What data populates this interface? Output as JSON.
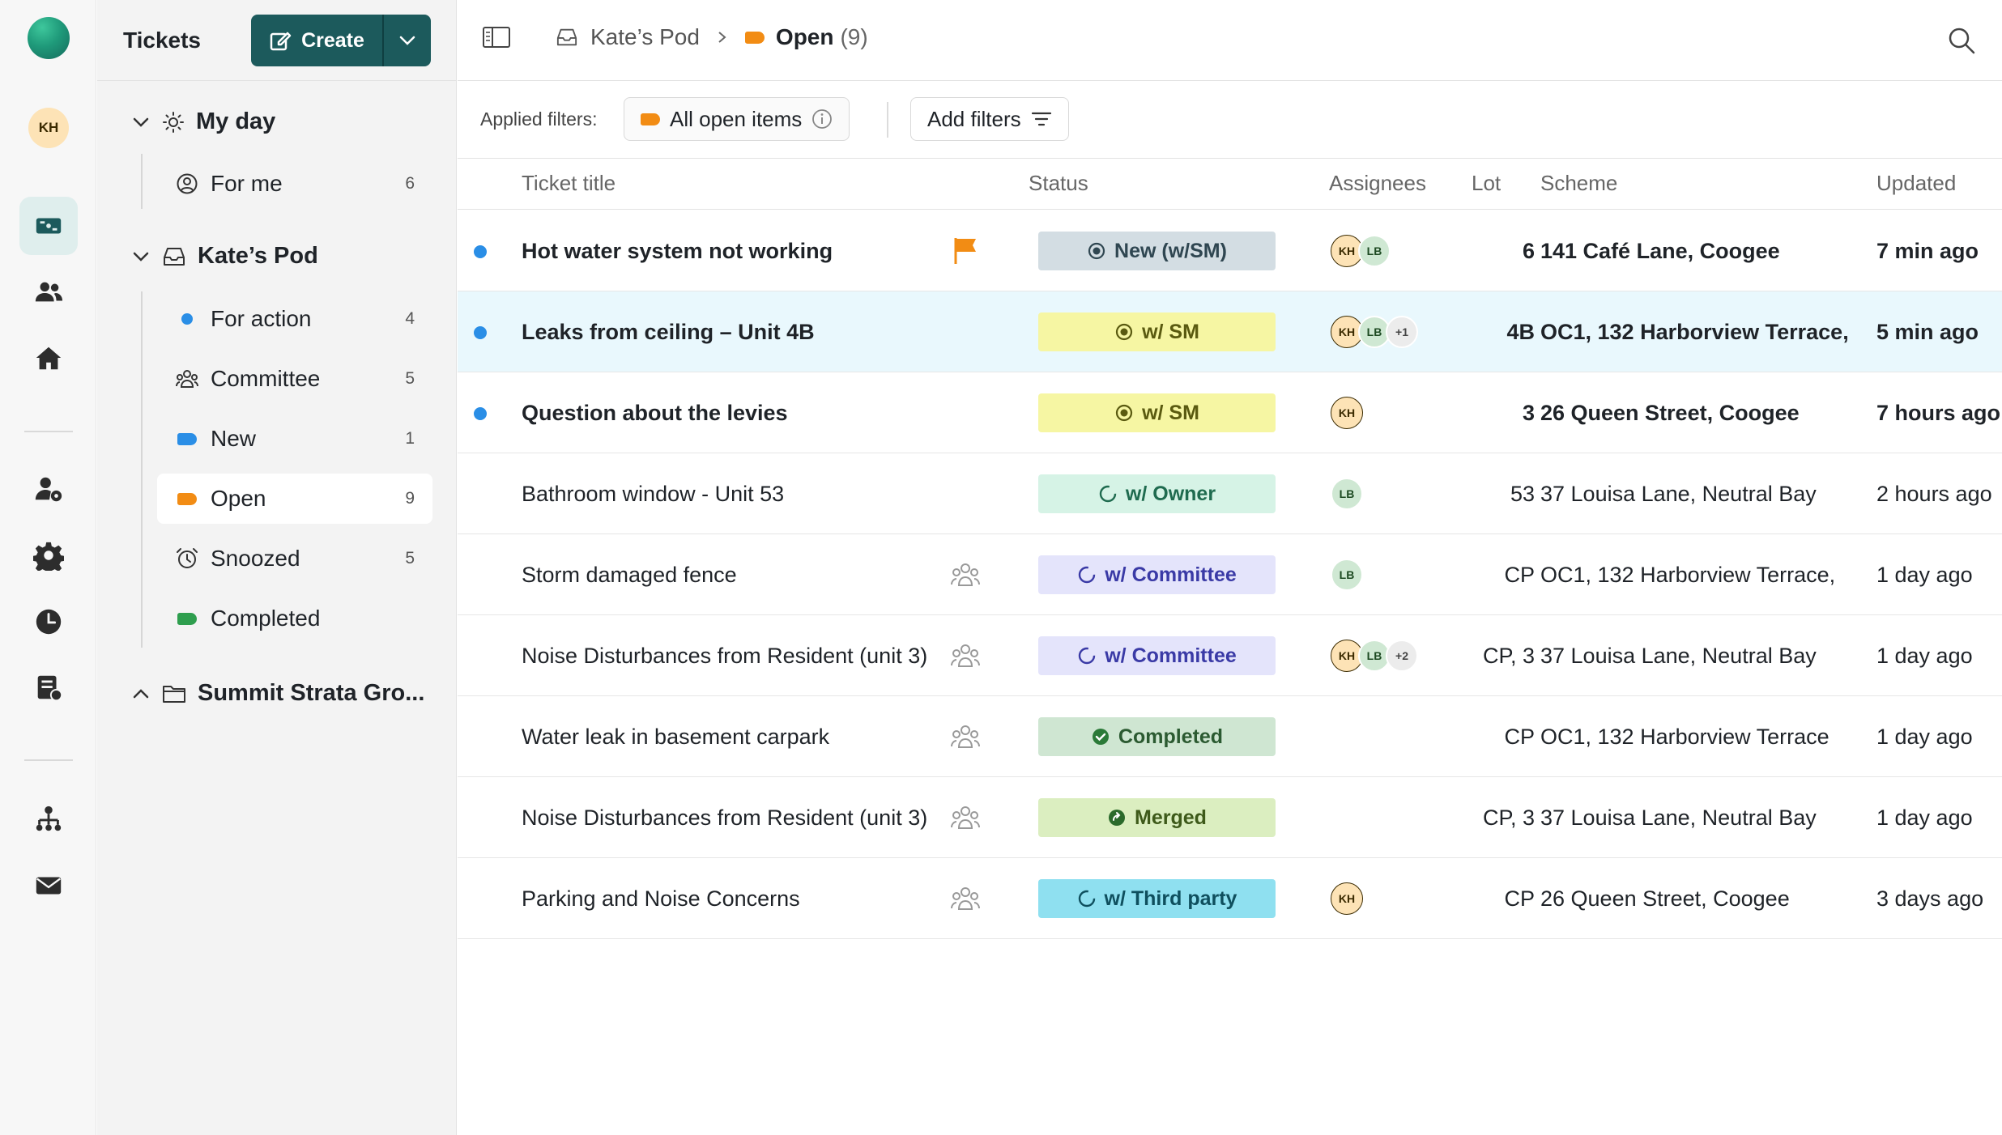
{
  "rail": {
    "user_initials": "KH"
  },
  "sidebar": {
    "title": "Tickets",
    "create_label": "Create",
    "groups": [
      {
        "label": "My day"
      },
      {
        "label": "Kate’s Pod"
      },
      {
        "label": "Summit Strata Gro..."
      }
    ],
    "items": [
      {
        "label": "For me",
        "count": "6"
      },
      {
        "label": "For action",
        "count": "4"
      },
      {
        "label": "Committee",
        "count": "5"
      },
      {
        "label": "New",
        "count": "1"
      },
      {
        "label": "Open",
        "count": "9"
      },
      {
        "label": "Snoozed",
        "count": "5"
      },
      {
        "label": "Completed",
        "count": ""
      }
    ]
  },
  "topbar": {
    "crumb_parent": "Kate’s Pod",
    "crumb_current": "Open",
    "crumb_count": "(9)"
  },
  "filters": {
    "label": "Applied filters:",
    "applied": "All open items",
    "add_label": "Add filters"
  },
  "table": {
    "headers": {
      "title": "Ticket title",
      "status": "Status",
      "assignees": "Assignees",
      "lot": "Lot",
      "scheme": "Scheme",
      "updated": "Updated"
    },
    "rows": [
      {
        "title": "Hot water system not working",
        "status": "New (w/SM)",
        "lot": "6",
        "scheme": "141 Café Lane, Coogee",
        "updated": "7 min ago",
        "av1": "KH",
        "av2": "LB"
      },
      {
        "title": "Leaks from ceiling – Unit 4B",
        "status": "w/ SM",
        "lot": "4B",
        "scheme": "OC1, 132 Harborview Terrace,",
        "updated": "5 min ago",
        "av1": "KH",
        "av2": "LB",
        "av_more": "+1"
      },
      {
        "title": "Question about the levies",
        "status": "w/ SM",
        "lot": "3",
        "scheme": "26 Queen Street, Coogee",
        "updated": "7 hours ago",
        "av1": "KH"
      },
      {
        "title": "Bathroom window - Unit 53",
        "status": "w/ Owner",
        "lot": "53",
        "scheme": "37 Louisa Lane, Neutral Bay",
        "updated": "2 hours ago",
        "av1": "LB"
      },
      {
        "title": "Storm damaged fence",
        "status": "w/ Committee",
        "lot": "CP",
        "scheme": "OC1, 132 Harborview Terrace,",
        "updated": "1 day ago",
        "av1": "LB"
      },
      {
        "title": "Noise Disturbances from Resident (unit 3)",
        "status": "w/ Committee",
        "lot": "CP, 3",
        "scheme": "37 Louisa Lane, Neutral Bay",
        "updated": "1 day ago",
        "av1": "KH",
        "av2": "LB",
        "av_more": "+2"
      },
      {
        "title": "Water leak in basement carpark",
        "status": "Completed",
        "lot": "CP",
        "scheme": "OC1, 132 Harborview Terrace",
        "updated": "1 day ago"
      },
      {
        "title": "Noise Disturbances from Resident (unit 3)",
        "status": "Merged",
        "lot": "CP, 3",
        "scheme": "37 Louisa Lane, Neutral Bay",
        "updated": "1 day ago"
      },
      {
        "title": "Parking and Noise Concerns",
        "status": "w/ Third party",
        "lot": "CP",
        "scheme": "26 Queen Street, Coogee",
        "updated": "3 days ago",
        "av1": "KH"
      }
    ]
  },
  "colors": {
    "brand": "#1c5a5c",
    "unread": "#2a8ee6",
    "tag_open": "#f28c14",
    "tag_new": "#2a8ee6",
    "tag_completed": "#2e9e4e"
  }
}
